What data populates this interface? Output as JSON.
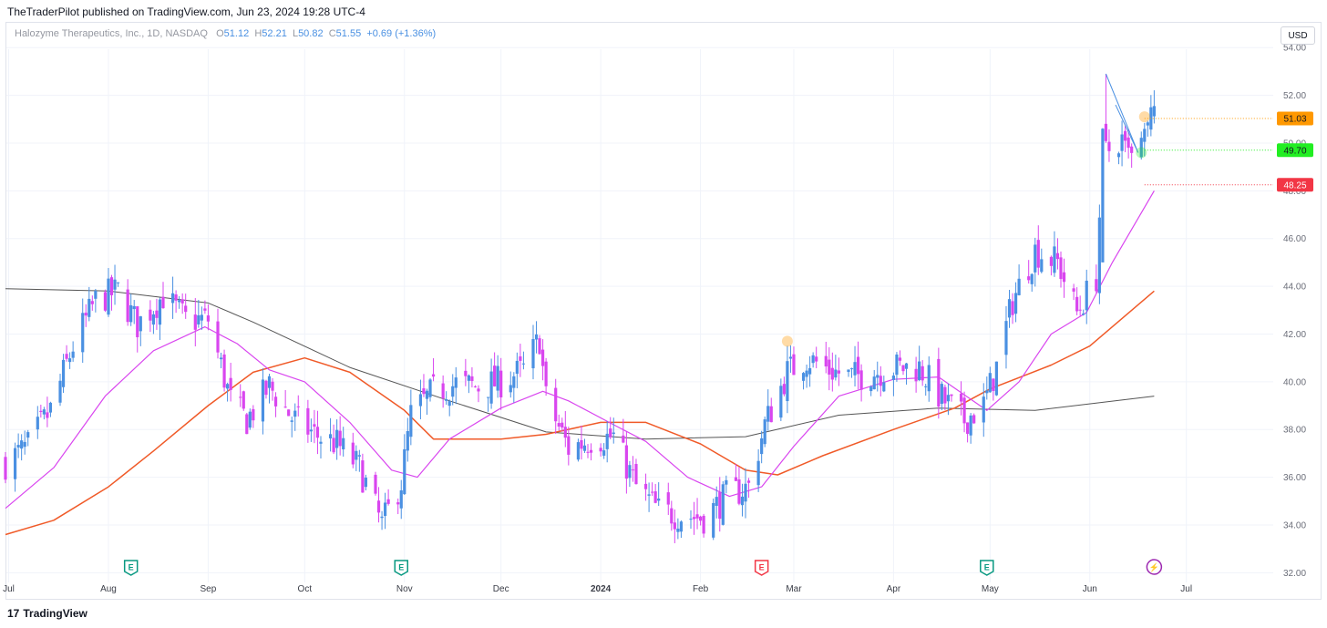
{
  "publisher": "TheTraderPilot published on TradingView.com, Jun 23, 2024 19:28 UTC-4",
  "legend": {
    "symbol": "Halozyme Therapeutics, Inc., 1D, NASDAQ",
    "open_label": "O",
    "open": "51.12",
    "high_label": "H",
    "high": "52.21",
    "low_label": "L",
    "low": "50.82",
    "close_label": "C",
    "close": "51.55",
    "change": "+0.69 (+1.36%)"
  },
  "currency_button": "USD",
  "footer": {
    "logo": "17",
    "brand": "TradingView"
  },
  "colors": {
    "up": "#4a90e2",
    "down": "#d946ef",
    "ema20": "#d946ef",
    "ema50": "#f05a28",
    "sma200": "#555555",
    "orange_tag": "#ff9800",
    "green_tag": "#22ee22",
    "red_tag": "#f23645",
    "earnings": "#089981",
    "earnings_neg": "#f23645",
    "dividend": "#9c27b0"
  },
  "chart_data": {
    "type": "candlestick",
    "ylim": [
      31.9,
      55.0
    ],
    "yticks": [
      "54.00",
      "52.00",
      "50.00",
      "48.00",
      "46.00",
      "44.00",
      "42.00",
      "40.00",
      "38.00",
      "36.00",
      "34.00",
      "32.00"
    ],
    "yticks_values": [
      54,
      52,
      50,
      48,
      46,
      44,
      42,
      40,
      38,
      36,
      34,
      32
    ],
    "xticks": [
      "Jul",
      "Aug",
      "Sep",
      "Oct",
      "Nov",
      "Dec",
      "2024",
      "Feb",
      "Mar",
      "Apr",
      "May",
      "Jun",
      "Jul"
    ],
    "xticks_dates": [
      "2023-07-01",
      "2023-08-01",
      "2023-09-01",
      "2023-10-01",
      "2023-11-01",
      "2023-12-01",
      "2024-01-01",
      "2024-02-01",
      "2024-03-01",
      "2024-04-01",
      "2024-05-01",
      "2024-06-01",
      "2024-07-01"
    ],
    "xlim": [
      "2023-06-30",
      "2024-07-28"
    ],
    "price_tags": [
      {
        "label": "51.03",
        "value": 51.03,
        "color": "orange"
      },
      {
        "label": "49.70",
        "value": 49.7,
        "color": "green"
      },
      {
        "label": "48.25",
        "value": 48.25,
        "color": "red"
      }
    ],
    "events": [
      {
        "date": "2023-08-08",
        "symbol": "E",
        "kind": "earnings"
      },
      {
        "date": "2023-10-31",
        "symbol": "E",
        "kind": "earnings"
      },
      {
        "date": "2024-02-20",
        "symbol": "E",
        "kind": "earnings_miss"
      },
      {
        "date": "2024-04-30",
        "symbol": "E",
        "kind": "earnings"
      },
      {
        "date": "2024-06-21",
        "symbol": "⚡",
        "kind": "dividend"
      }
    ],
    "anchors": {
      "close": [
        [
          "2023-06-30",
          36.6
        ],
        [
          "2023-07-07",
          37.3
        ],
        [
          "2023-07-14",
          38.8
        ],
        [
          "2023-07-21",
          41.5
        ],
        [
          "2023-07-28",
          43.4
        ],
        [
          "2023-08-04",
          43.8
        ],
        [
          "2023-08-10",
          42.4
        ],
        [
          "2023-08-18",
          43.6
        ],
        [
          "2023-08-25",
          42.6
        ],
        [
          "2023-09-01",
          42.6
        ],
        [
          "2023-09-08",
          39.2
        ],
        [
          "2023-09-13",
          38.4
        ],
        [
          "2023-09-20",
          39.8
        ],
        [
          "2023-09-27",
          38.5
        ],
        [
          "2023-10-04",
          37.8
        ],
        [
          "2023-10-11",
          37.4
        ],
        [
          "2023-10-18",
          36.4
        ],
        [
          "2023-10-25",
          34.0
        ],
        [
          "2023-10-31",
          35.8
        ],
        [
          "2023-11-03",
          38.6
        ],
        [
          "2023-11-10",
          39.6
        ],
        [
          "2023-11-17",
          39.9
        ],
        [
          "2023-11-24",
          39.8
        ],
        [
          "2023-12-01",
          40.0
        ],
        [
          "2023-12-08",
          40.5
        ],
        [
          "2023-12-13",
          41.8
        ],
        [
          "2023-12-15",
          39.3
        ],
        [
          "2023-12-22",
          37.2
        ],
        [
          "2023-12-29",
          37.6
        ],
        [
          "2024-01-05",
          37.7
        ],
        [
          "2024-01-12",
          35.6
        ],
        [
          "2024-01-19",
          34.6
        ],
        [
          "2024-01-26",
          34.4
        ],
        [
          "2024-02-02",
          34.3
        ],
        [
          "2024-02-09",
          35.2
        ],
        [
          "2024-02-16",
          35.6
        ],
        [
          "2024-02-21",
          38.2
        ],
        [
          "2024-02-28",
          40.4
        ],
        [
          "2024-03-05",
          41.0
        ],
        [
          "2024-03-12",
          40.5
        ],
        [
          "2024-03-19",
          40.2
        ],
        [
          "2024-03-26",
          40.4
        ],
        [
          "2024-04-02",
          40.6
        ],
        [
          "2024-04-09",
          40.6
        ],
        [
          "2024-04-16",
          39.3
        ],
        [
          "2024-04-23",
          38.4
        ],
        [
          "2024-04-29",
          39.0
        ],
        [
          "2024-05-03",
          40.6
        ],
        [
          "2024-05-08",
          43.4
        ],
        [
          "2024-05-15",
          45.5
        ],
        [
          "2024-05-22",
          45.0
        ],
        [
          "2024-05-28",
          42.9
        ],
        [
          "2024-06-03",
          44.4
        ],
        [
          "2024-06-05",
          49.5
        ],
        [
          "2024-06-10",
          49.9
        ],
        [
          "2024-06-14",
          49.3
        ],
        [
          "2024-06-18",
          50.1
        ],
        [
          "2024-06-21",
          51.55
        ]
      ],
      "ema20": [
        [
          "2023-06-30",
          34.7
        ],
        [
          "2023-07-15",
          36.4
        ],
        [
          "2023-07-31",
          39.4
        ],
        [
          "2023-08-15",
          41.3
        ],
        [
          "2023-08-31",
          42.3
        ],
        [
          "2023-09-10",
          41.6
        ],
        [
          "2023-09-20",
          40.5
        ],
        [
          "2023-10-01",
          40.0
        ],
        [
          "2023-10-15",
          38.3
        ],
        [
          "2023-10-28",
          36.3
        ],
        [
          "2023-11-05",
          36.0
        ],
        [
          "2023-11-15",
          37.6
        ],
        [
          "2023-12-01",
          38.9
        ],
        [
          "2023-12-14",
          39.6
        ],
        [
          "2023-12-22",
          39.2
        ],
        [
          "2024-01-05",
          38.2
        ],
        [
          "2024-01-15",
          37.5
        ],
        [
          "2024-01-28",
          36.0
        ],
        [
          "2024-02-10",
          35.2
        ],
        [
          "2024-02-20",
          35.6
        ],
        [
          "2024-03-01",
          37.3
        ],
        [
          "2024-03-15",
          39.4
        ],
        [
          "2024-04-01",
          40.1
        ],
        [
          "2024-04-15",
          40.2
        ],
        [
          "2024-04-30",
          38.8
        ],
        [
          "2024-05-10",
          40.0
        ],
        [
          "2024-05-20",
          42.0
        ],
        [
          "2024-05-31",
          42.9
        ],
        [
          "2024-06-08",
          45.0
        ],
        [
          "2024-06-21",
          48.0
        ]
      ],
      "ema50": [
        [
          "2023-06-30",
          33.6
        ],
        [
          "2023-07-15",
          34.2
        ],
        [
          "2023-08-01",
          35.6
        ],
        [
          "2023-08-15",
          37.1
        ],
        [
          "2023-09-01",
          39.0
        ],
        [
          "2023-09-15",
          40.4
        ],
        [
          "2023-10-01",
          41.0
        ],
        [
          "2023-10-15",
          40.4
        ],
        [
          "2023-11-01",
          38.8
        ],
        [
          "2023-11-10",
          37.6
        ],
        [
          "2023-12-01",
          37.6
        ],
        [
          "2023-12-15",
          37.8
        ],
        [
          "2024-01-01",
          38.3
        ],
        [
          "2024-01-15",
          38.3
        ],
        [
          "2024-02-01",
          37.4
        ],
        [
          "2024-02-15",
          36.3
        ],
        [
          "2024-02-25",
          36.1
        ],
        [
          "2024-03-10",
          36.9
        ],
        [
          "2024-04-01",
          38.0
        ],
        [
          "2024-04-20",
          38.9
        ],
        [
          "2024-05-01",
          39.7
        ],
        [
          "2024-05-20",
          40.7
        ],
        [
          "2024-06-01",
          41.5
        ],
        [
          "2024-06-21",
          43.8
        ]
      ],
      "sma200": [
        [
          "2023-06-30",
          43.9
        ],
        [
          "2023-08-01",
          43.8
        ],
        [
          "2023-09-01",
          43.3
        ],
        [
          "2023-09-15",
          42.5
        ],
        [
          "2023-10-15",
          40.6
        ],
        [
          "2023-11-15",
          39.2
        ],
        [
          "2023-12-15",
          37.9
        ],
        [
          "2024-01-15",
          37.6
        ],
        [
          "2024-02-15",
          37.7
        ],
        [
          "2024-03-15",
          38.6
        ],
        [
          "2024-04-15",
          38.9
        ],
        [
          "2024-05-15",
          38.8
        ],
        [
          "2024-06-21",
          39.4
        ]
      ]
    }
  }
}
